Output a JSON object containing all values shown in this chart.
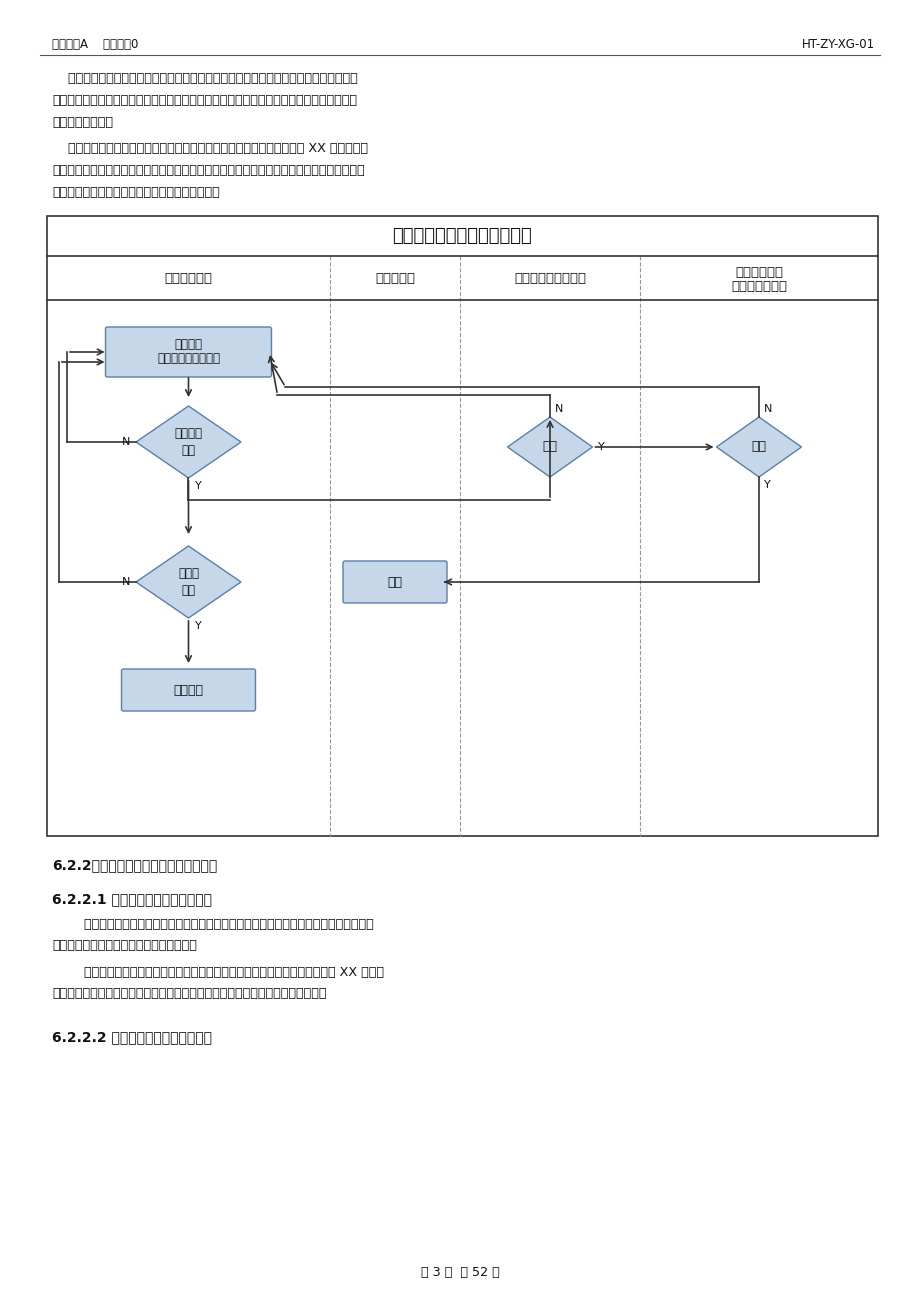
{
  "header_left": "版本号：A    修改码：0",
  "header_right": "HT-ZY-XG-01",
  "para1_indent": "    项目第零级网络计划的评审由项目管理中心负责组织，各业务模块直属主管领导及业务",
  "para1_line2": "经理、项目团队人员参加评审，达成一致后由各业模块直属主管领导会签、集团总裁或主持",
  "para1_line3": "工作副总裁批准。",
  "para2_line1": "    注：新产品开发项目的第零级网络计划需按照附件一《新产品开发项目 XX 车型第零级",
  "para2_line2": "网络计划（模板）》进行编制，如项目实际开展不需要进行该项工作的，需要在网络计划的备",
  "para2_line3": "注栏进行说明原因，但不允许删除该项工作内容。",
  "flowchart_title": "第零级网络计划评审管理流程",
  "col1_header": "项目管理中心",
  "col2_header": "经营管理部",
  "col3_header": "各业务模块直属领导",
  "col4_header1": "汽车集团总裁",
  "col4_header2": "主持工作副总裁",
  "box1_line1": "项目经理",
  "box1_line2": "编制第零级网络计划",
  "diamond1_text": "项目总监\n审核",
  "diamond2_text": "总经理\n审定",
  "diamond3_text": "会签",
  "diamond4_text": "批准",
  "box3_text": "组织审批",
  "pub_text": "发布",
  "section1": "6.2.2项目第一层网络计划的编制和批准",
  "section2": "6.2.2.1 项目第一层网络计划的编制",
  "s2p1_l1": "        项目第一层网络计划在第零级网络计划完成后的五个工作日内完成，项目第一层网络计",
  "s2p1_l2": "划审查通过后需在五个工作日内完成评审。",
  "s2p2_l1": "        项目第一层网络计划由各业务模块业务经理负责按附件三《新产品开发项目 XX 车型第",
  "s2p2_l2": "一层网络计划（模板）》进行编制，时间节点与内容必须与第零级网络计划一致。",
  "section3": "6.2.2.2 项目第一层网络计划的批准",
  "footer": "第 3 页  共 52 页",
  "bg_color": "#ffffff",
  "box_fill": "#c5d7e8",
  "box_stroke": "#5a7fa8",
  "text_color": "#111111",
  "line_color": "#333333",
  "dash_color": "#999999"
}
